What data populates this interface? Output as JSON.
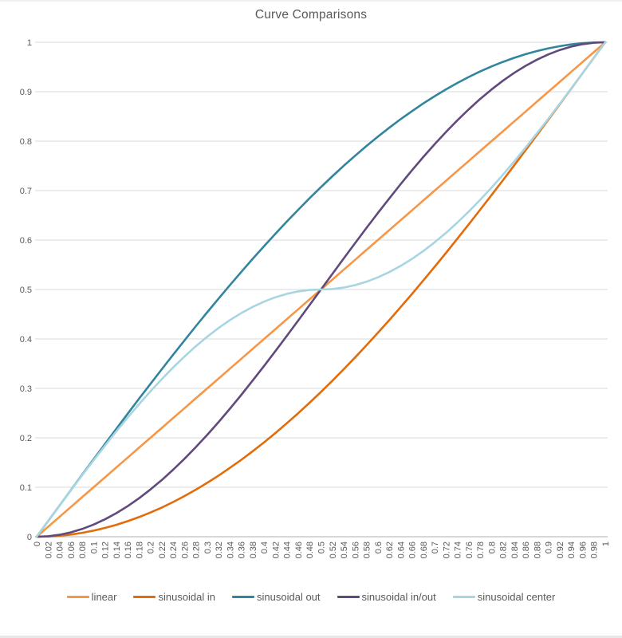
{
  "window": {
    "background_color": "#ffffff",
    "top_edge_color": "#f0f0f0",
    "bottom_edge_color": "#e7e7e7"
  },
  "chart_style": {
    "grid_color": "#d9d9d9",
    "axis_line_color": "#bfbfbf",
    "tick_label_color": "#595959",
    "title_color": "#595959",
    "legend_text_color": "#595959"
  },
  "chart_data": {
    "type": "line",
    "title": "Curve Comparisons",
    "xlabel": "",
    "ylabel": "",
    "xlim": [
      0,
      1
    ],
    "ylim": [
      0,
      1
    ],
    "grid": "horizontal",
    "legend_position": "bottom",
    "x": [
      0,
      0.02,
      0.04,
      0.06,
      0.08,
      0.1,
      0.12,
      0.14,
      0.16,
      0.18,
      0.2,
      0.22,
      0.24,
      0.26,
      0.28,
      0.3,
      0.32,
      0.34,
      0.36,
      0.38,
      0.4,
      0.42,
      0.44,
      0.46,
      0.48,
      0.5,
      0.52,
      0.54,
      0.56,
      0.58,
      0.6,
      0.62,
      0.64,
      0.66,
      0.68,
      0.7,
      0.72,
      0.74,
      0.76,
      0.78,
      0.8,
      0.82,
      0.84,
      0.86,
      0.88,
      0.9,
      0.92,
      0.94,
      0.96,
      0.98,
      1
    ],
    "x_tick_labels": [
      "0",
      "0.02",
      "0.04",
      "0.06",
      "0.08",
      "0.1",
      "0.12",
      "0.14",
      "0.16",
      "0.18",
      "0.2",
      "0.22",
      "0.24",
      "0.26",
      "0.28",
      "0.3",
      "0.32",
      "0.34",
      "0.36",
      "0.38",
      "0.4",
      "0.42",
      "0.44",
      "0.46",
      "0.48",
      "0.5",
      "0.52",
      "0.54",
      "0.56",
      "0.58",
      "0.6",
      "0.62",
      "0.64",
      "0.66",
      "0.68",
      "0.7",
      "0.72",
      "0.74",
      "0.76",
      "0.78",
      "0.8",
      "0.82",
      "0.84",
      "0.86",
      "0.88",
      "0.9",
      "0.92",
      "0.94",
      "0.96",
      "0.98",
      "1"
    ],
    "y_ticks": [
      0,
      0.1,
      0.2,
      0.3,
      0.4,
      0.5,
      0.6,
      0.7,
      0.8,
      0.9,
      1
    ],
    "y_tick_labels": [
      "0",
      "0.1",
      "0.2",
      "0.3",
      "0.4",
      "0.5",
      "0.6",
      "0.7",
      "0.8",
      "0.9",
      "1"
    ],
    "series": [
      {
        "name": "linear",
        "color": "#F79646",
        "values": [
          0,
          0.02,
          0.04,
          0.06,
          0.08,
          0.1,
          0.12,
          0.14,
          0.16,
          0.18,
          0.2,
          0.22,
          0.24,
          0.26,
          0.28,
          0.3,
          0.32,
          0.34,
          0.36,
          0.38,
          0.4,
          0.42,
          0.44,
          0.46,
          0.48,
          0.5,
          0.52,
          0.54,
          0.56,
          0.58,
          0.6,
          0.62,
          0.64,
          0.66,
          0.68,
          0.7,
          0.72,
          0.74,
          0.76,
          0.78,
          0.8,
          0.82,
          0.84,
          0.86,
          0.88,
          0.9,
          0.92,
          0.94,
          0.96,
          0.98,
          1
        ]
      },
      {
        "name": "sinusoidal in",
        "color": "#E36C0A",
        "values": [
          0,
          0.0005,
          0.002,
          0.0044,
          0.0079,
          0.0123,
          0.0177,
          0.0241,
          0.0314,
          0.0397,
          0.0489,
          0.0591,
          0.0702,
          0.0822,
          0.0952,
          0.109,
          0.1237,
          0.1393,
          0.1557,
          0.1729,
          0.191,
          0.2098,
          0.2295,
          0.2499,
          0.271,
          0.2929,
          0.3155,
          0.3387,
          0.3626,
          0.3871,
          0.4122,
          0.4379,
          0.4642,
          0.491,
          0.5182,
          0.546,
          0.5742,
          0.6029,
          0.6319,
          0.6613,
          0.691,
          0.721,
          0.7513,
          0.7819,
          0.8126,
          0.8436,
          0.8747,
          0.9059,
          0.9372,
          0.9686,
          1
        ]
      },
      {
        "name": "sinusoidal out",
        "color": "#31859C",
        "values": [
          0,
          0.0314,
          0.0628,
          0.0941,
          0.1253,
          0.1564,
          0.1874,
          0.2181,
          0.2487,
          0.279,
          0.309,
          0.3387,
          0.3681,
          0.3971,
          0.4258,
          0.454,
          0.4818,
          0.509,
          0.5358,
          0.5621,
          0.5878,
          0.6129,
          0.6374,
          0.6613,
          0.6845,
          0.7071,
          0.729,
          0.7501,
          0.7705,
          0.7902,
          0.809,
          0.8271,
          0.8443,
          0.8607,
          0.8763,
          0.891,
          0.9048,
          0.9178,
          0.9298,
          0.9409,
          0.9511,
          0.9603,
          0.9686,
          0.9759,
          0.9823,
          0.9877,
          0.9921,
          0.9956,
          0.998,
          0.9995,
          1
        ]
      },
      {
        "name": "sinusoidal in/out",
        "color": "#604A7B",
        "values": [
          0,
          0.001,
          0.0039,
          0.0089,
          0.0157,
          0.0245,
          0.0351,
          0.0476,
          0.0618,
          0.0778,
          0.0955,
          0.1147,
          0.1355,
          0.1577,
          0.1813,
          0.2061,
          0.2321,
          0.2591,
          0.2871,
          0.3159,
          0.3455,
          0.3757,
          0.4063,
          0.4373,
          0.4686,
          0.5,
          0.5314,
          0.5627,
          0.5937,
          0.6243,
          0.6545,
          0.6841,
          0.7129,
          0.7409,
          0.7679,
          0.7939,
          0.8187,
          0.8423,
          0.8645,
          0.8853,
          0.9045,
          0.9222,
          0.9382,
          0.9524,
          0.9649,
          0.9755,
          0.9843,
          0.9911,
          0.9961,
          0.999,
          1
        ]
      },
      {
        "name": "sinusoidal center",
        "color": "#A8D5E2",
        "values": [
          0,
          0.0314,
          0.0627,
          0.0937,
          0.1243,
          0.1545,
          0.1841,
          0.2129,
          0.2409,
          0.2679,
          0.2939,
          0.3187,
          0.3423,
          0.3645,
          0.3853,
          0.4045,
          0.4222,
          0.4382,
          0.4524,
          0.4649,
          0.4755,
          0.4843,
          0.4911,
          0.4961,
          0.499,
          0.5,
          0.501,
          0.5039,
          0.5089,
          0.5157,
          0.5245,
          0.5351,
          0.5476,
          0.5618,
          0.5778,
          0.5955,
          0.6147,
          0.6355,
          0.6577,
          0.6813,
          0.7061,
          0.7321,
          0.7591,
          0.7871,
          0.8159,
          0.8455,
          0.8757,
          0.9063,
          0.9373,
          0.9686,
          1
        ]
      }
    ]
  }
}
